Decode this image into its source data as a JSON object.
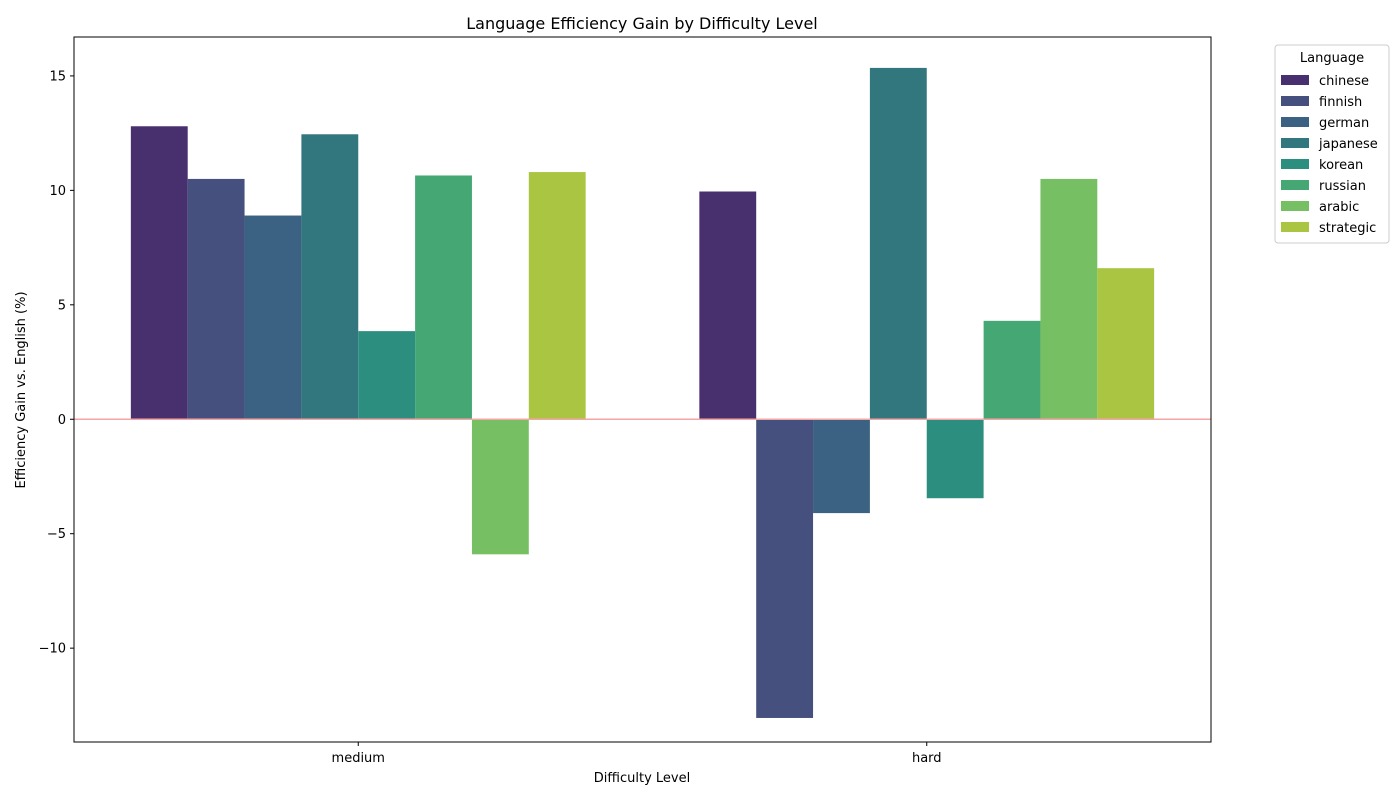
{
  "chart_data": {
    "type": "bar",
    "title": "Language Efficiency Gain by Difficulty Level",
    "xlabel": "Difficulty Level",
    "ylabel": "Efficiency Gain vs. English (%)",
    "categories": [
      "medium",
      "hard"
    ],
    "ylim": [
      -14.1,
      16.7
    ],
    "yticks": [
      -10,
      -5,
      0,
      5,
      10,
      15
    ],
    "ytick_labels": [
      "−10",
      "−5",
      "0",
      "5",
      "10",
      "15"
    ],
    "reference_line": {
      "y": 0,
      "color": "#f4a6a6"
    },
    "legend": {
      "title": "Language",
      "placement": "outside-top-right"
    },
    "grid": false,
    "series": [
      {
        "name": "chinese",
        "color": "#482f6e",
        "values": [
          12.8,
          9.95
        ]
      },
      {
        "name": "finnish",
        "color": "#46507e",
        "values": [
          10.5,
          -13.05
        ]
      },
      {
        "name": "german",
        "color": "#3b6282",
        "values": [
          8.9,
          -4.1
        ]
      },
      {
        "name": "japanese",
        "color": "#32767e",
        "values": [
          12.45,
          15.35
        ]
      },
      {
        "name": "korean",
        "color": "#2b8e7e",
        "values": [
          3.85,
          -3.45
        ]
      },
      {
        "name": "russian",
        "color": "#45a874",
        "values": [
          10.65,
          4.3
        ]
      },
      {
        "name": "arabic",
        "color": "#76bf63",
        "values": [
          -5.9,
          10.5
        ]
      },
      {
        "name": "strategic",
        "color": "#a9c541",
        "values": [
          10.8,
          6.6
        ]
      }
    ]
  }
}
